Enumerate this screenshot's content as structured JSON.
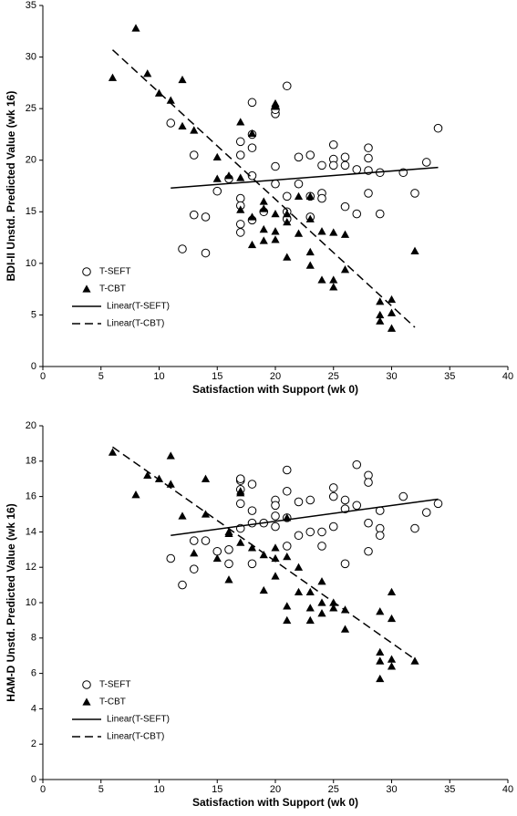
{
  "chart_data": [
    {
      "type": "scatter",
      "x_label": "Satisfaction with Support (wk 0)",
      "y_label": "BDI-II Unstd. Predicted Value (wk 16)",
      "xlim": [
        0,
        40
      ],
      "xticks": [
        0,
        5,
        10,
        15,
        20,
        25,
        30,
        35,
        40
      ],
      "ylim": [
        0,
        35
      ],
      "yticks": [
        0,
        5,
        10,
        15,
        20,
        25,
        30,
        35
      ],
      "legend": "lower left",
      "series": [
        {
          "name": "T-SEFT",
          "mode": "markers",
          "marker": "circle",
          "color": "#000000",
          "x": [
            11,
            12,
            13,
            13,
            14,
            14,
            15,
            16,
            17,
            17,
            17,
            17,
            17,
            17,
            18,
            18,
            18,
            18,
            18,
            19,
            20,
            20,
            20,
            20,
            21,
            21,
            21,
            21,
            22,
            22,
            23,
            23,
            23,
            24,
            24,
            24,
            25,
            25,
            25,
            26,
            26,
            26,
            27,
            27,
            28,
            28,
            28,
            28,
            29,
            29,
            31,
            32,
            33,
            34
          ],
          "values": [
            23.6,
            11.4,
            20.5,
            14.7,
            14.5,
            11,
            17,
            18.2,
            21.8,
            20.5,
            16.3,
            15.6,
            13.8,
            13,
            25.6,
            22.5,
            21.2,
            18.5,
            14.2,
            15,
            24.5,
            24.9,
            19.4,
            17.7,
            27.2,
            16.5,
            15,
            14.3,
            20.3,
            17.7,
            20.5,
            16.5,
            14.5,
            19.5,
            16.8,
            16.3,
            21.5,
            20.1,
            19.5,
            20.3,
            19.5,
            15.5,
            19.1,
            14.8,
            21.2,
            20.2,
            19,
            16.8,
            18.8,
            14.8,
            18.8,
            16.8,
            19.8,
            23.1
          ]
        },
        {
          "name": "T-CBT",
          "mode": "markers",
          "marker": "triangle",
          "color": "#000000",
          "x": [
            6,
            8,
            9,
            10,
            11,
            12,
            12,
            13,
            15,
            15,
            16,
            17,
            17,
            17,
            18,
            18,
            18,
            19,
            19,
            19,
            20,
            20,
            20,
            20,
            21,
            21,
            21,
            22,
            22,
            23,
            23,
            23,
            24,
            24,
            25,
            25,
            25,
            26,
            26,
            29,
            29,
            29,
            30,
            30,
            30,
            32,
            20,
            19,
            23
          ],
          "values": [
            28,
            32.8,
            28.4,
            26.5,
            25.8,
            23.3,
            27.8,
            22.9,
            18.2,
            20.3,
            18.5,
            23.7,
            18.3,
            15.2,
            22.6,
            14.5,
            11.8,
            13.3,
            16,
            12.2,
            25.2,
            25.5,
            12.3,
            13.1,
            14.8,
            10.6,
            14,
            16.5,
            12.9,
            11.1,
            9.8,
            14.3,
            8.4,
            13.1,
            7.7,
            8.4,
            13,
            12.8,
            9.4,
            6.3,
            5,
            4.4,
            6.5,
            5.2,
            3.7,
            11.2,
            14.8,
            15.3,
            16.5
          ]
        },
        {
          "name": "Linear(T-SEFT)",
          "mode": "line",
          "dash": "solid",
          "color": "#000000",
          "x": [
            11,
            34
          ],
          "values": [
            17.3,
            19.3
          ]
        },
        {
          "name": "Linear(T-CBT)",
          "mode": "line",
          "dash": "dashed",
          "color": "#000000",
          "x": [
            6,
            32
          ],
          "values": [
            30.7,
            3.8
          ]
        }
      ]
    },
    {
      "type": "scatter",
      "x_label": "Satisfaction with Support (wk 0)",
      "y_label": "HAM-D Unstd. Predicted Value (wk 16)",
      "xlim": [
        0,
        40
      ],
      "xticks": [
        0,
        5,
        10,
        15,
        20,
        25,
        30,
        35,
        40
      ],
      "ylim": [
        0,
        20
      ],
      "yticks": [
        0,
        2,
        4,
        6,
        8,
        10,
        12,
        14,
        16,
        18,
        20
      ],
      "legend": "lower left",
      "series": [
        {
          "name": "T-SEFT",
          "mode": "markers",
          "marker": "circle",
          "color": "#000000",
          "x": [
            11,
            12,
            13,
            14,
            15,
            16,
            17,
            17,
            17,
            17,
            17,
            18,
            18,
            18,
            19,
            20,
            20,
            20,
            20,
            21,
            21,
            21,
            21,
            22,
            22,
            23,
            23,
            24,
            24,
            25,
            25,
            25,
            26,
            26,
            26,
            27,
            27,
            28,
            28,
            28,
            28,
            29,
            29,
            29,
            31,
            32,
            33,
            34,
            16,
            18,
            13
          ],
          "values": [
            12.5,
            11,
            11.9,
            13.5,
            12.9,
            13,
            16.9,
            17,
            16.4,
            15.6,
            14.2,
            16.7,
            15.2,
            14.5,
            14.5,
            15.8,
            15.5,
            14.9,
            14.3,
            17.5,
            16.3,
            14.8,
            13.2,
            15.7,
            13.8,
            15.8,
            14,
            14,
            13.2,
            16.5,
            16,
            14.3,
            15.8,
            15.3,
            12.2,
            17.8,
            15.5,
            17.2,
            16.8,
            14.5,
            12.9,
            15.2,
            14.2,
            13.8,
            16,
            14.2,
            15.1,
            15.6,
            12.2,
            12.2,
            13.5
          ]
        },
        {
          "name": "T-CBT",
          "mode": "markers",
          "marker": "triangle",
          "color": "#000000",
          "x": [
            6,
            8,
            9,
            10,
            11,
            11,
            12,
            13,
            14,
            14,
            15,
            16,
            16,
            17,
            17,
            17,
            18,
            19,
            19,
            20,
            20,
            21,
            21,
            21,
            21,
            22,
            22,
            23,
            23,
            23,
            24,
            24,
            24,
            25,
            25,
            26,
            26,
            29,
            29,
            29,
            29,
            30,
            30,
            30,
            30,
            32,
            16,
            20
          ],
          "values": [
            18.5,
            16.1,
            17.2,
            17,
            18.3,
            16.7,
            14.9,
            12.8,
            17,
            15,
            12.5,
            14,
            11.3,
            16.3,
            16.2,
            13.4,
            13.1,
            10.7,
            12.7,
            12.5,
            11.5,
            14.8,
            12.6,
            9.8,
            9,
            10.6,
            12,
            10.6,
            9.7,
            9,
            10,
            9.4,
            11.2,
            10,
            9.7,
            8.5,
            9.6,
            9.5,
            7.2,
            6.7,
            5.7,
            10.6,
            9.1,
            6.8,
            6.4,
            6.7,
            13.9,
            13.1
          ]
        },
        {
          "name": "Linear(T-SEFT)",
          "mode": "line",
          "dash": "solid",
          "color": "#000000",
          "x": [
            11,
            34
          ],
          "values": [
            13.8,
            15.85
          ]
        },
        {
          "name": "Linear(T-CBT)",
          "mode": "line",
          "dash": "dashed",
          "color": "#000000",
          "x": [
            6,
            32
          ],
          "values": [
            18.8,
            6.8
          ]
        }
      ]
    }
  ]
}
